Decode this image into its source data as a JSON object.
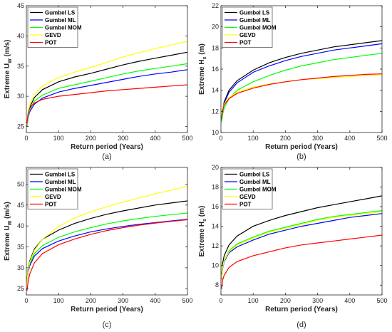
{
  "chart_data": [
    {
      "type": "line",
      "panel_label": "(a)",
      "xlabel": "Return period (Years)",
      "ylabel": "Extreme U",
      "ylabel_sub": "W",
      "ylabel_unit": " (m/s)",
      "xlim": [
        0,
        500
      ],
      "ylim": [
        24,
        45
      ],
      "xticks": [
        0,
        100,
        200,
        300,
        400,
        500
      ],
      "yticks": [
        25,
        30,
        35,
        40,
        45
      ],
      "grid": false,
      "legend_position": "top-left",
      "x": [
        2,
        5,
        10,
        25,
        50,
        100,
        150,
        200,
        250,
        300,
        350,
        400,
        450,
        500
      ],
      "series": [
        {
          "name": "Gumbel LS",
          "color": "#000000",
          "values": [
            25.2,
            26.8,
            28.1,
            29.8,
            31.1,
            32.4,
            33.2,
            33.8,
            34.5,
            35.2,
            35.8,
            36.3,
            36.8,
            37.3
          ]
        },
        {
          "name": "Gumbel ML",
          "color": "#0000ff",
          "values": [
            25.0,
            26.4,
            27.4,
            28.7,
            29.7,
            30.7,
            31.3,
            31.8,
            32.3,
            32.8,
            33.3,
            33.7,
            34.0,
            34.4
          ]
        },
        {
          "name": "Gumbel MOM",
          "color": "#00ff00",
          "values": [
            25.1,
            26.6,
            27.7,
            29.2,
            30.2,
            31.3,
            31.9,
            32.5,
            33.1,
            33.7,
            34.2,
            34.6,
            35.0,
            35.4
          ]
        },
        {
          "name": "GEVD",
          "color": "#ffff00",
          "values": [
            25.3,
            27.0,
            28.5,
            30.3,
            31.7,
            33.1,
            34.0,
            34.8,
            35.6,
            36.5,
            37.2,
            37.9,
            38.5,
            39.1
          ]
        },
        {
          "name": "POT",
          "color": "#ff0000",
          "values": [
            25.5,
            27.1,
            28.0,
            28.9,
            29.5,
            30.0,
            30.3,
            30.6,
            30.9,
            31.1,
            31.3,
            31.5,
            31.7,
            31.9
          ]
        }
      ]
    },
    {
      "type": "line",
      "panel_label": "(b)",
      "xlabel": "Return period (Years)",
      "ylabel": "Extreme H",
      "ylabel_sub": "s",
      "ylabel_unit": " (m)",
      "xlim": [
        0,
        500
      ],
      "ylim": [
        10,
        22
      ],
      "xticks": [
        0,
        100,
        200,
        300,
        400,
        500
      ],
      "yticks": [
        10,
        12,
        14,
        16,
        18,
        20,
        22
      ],
      "grid": false,
      "legend_position": "top-left",
      "x": [
        2,
        5,
        10,
        25,
        50,
        100,
        150,
        200,
        250,
        300,
        350,
        400,
        450,
        500
      ],
      "series": [
        {
          "name": "Gumbel LS",
          "color": "#000000",
          "values": [
            11.2,
            12.1,
            12.9,
            14.0,
            14.9,
            15.9,
            16.6,
            17.1,
            17.5,
            17.8,
            18.1,
            18.3,
            18.5,
            18.7
          ]
        },
        {
          "name": "Gumbel ML",
          "color": "#0000ff",
          "values": [
            11.2,
            12.0,
            12.8,
            13.8,
            14.7,
            15.7,
            16.3,
            16.8,
            17.2,
            17.5,
            17.8,
            18.0,
            18.2,
            18.4
          ]
        },
        {
          "name": "Gumbel MOM",
          "color": "#00ff00",
          "values": [
            11.0,
            11.7,
            12.3,
            13.2,
            14.0,
            14.8,
            15.4,
            15.9,
            16.3,
            16.6,
            16.9,
            17.1,
            17.3,
            17.5
          ]
        },
        {
          "name": "GEVD",
          "color": "#ffff00",
          "values": [
            11.4,
            12.2,
            12.7,
            13.3,
            13.8,
            14.3,
            14.6,
            14.8,
            15.0,
            15.1,
            15.2,
            15.3,
            15.4,
            15.45
          ]
        },
        {
          "name": "POT",
          "color": "#ff0000",
          "values": [
            11.4,
            12.1,
            12.6,
            13.2,
            13.7,
            14.2,
            14.55,
            14.8,
            15.0,
            15.15,
            15.3,
            15.4,
            15.5,
            15.55
          ]
        }
      ]
    },
    {
      "type": "line",
      "panel_label": "(c)",
      "xlabel": "Return period (Years)",
      "ylabel": "Extreme U",
      "ylabel_sub": "W",
      "ylabel_unit": " (m/s)",
      "xlim": [
        0,
        500
      ],
      "ylim": [
        23.5,
        54
      ],
      "xticks": [
        0,
        100,
        200,
        300,
        400,
        500
      ],
      "yticks": [
        25,
        30,
        35,
        40,
        45,
        50
      ],
      "grid": false,
      "legend_position": "top-left",
      "x": [
        2,
        5,
        10,
        25,
        50,
        100,
        150,
        200,
        250,
        300,
        350,
        400,
        450,
        500
      ],
      "series": [
        {
          "name": "Gumbel LS",
          "color": "#000000",
          "values": [
            27.0,
            29.5,
            31.5,
            34.5,
            36.8,
            39.0,
            40.6,
            41.8,
            42.8,
            43.6,
            44.3,
            45.0,
            45.5,
            46.0
          ]
        },
        {
          "name": "Gumbel ML",
          "color": "#0000ff",
          "values": [
            26.5,
            28.7,
            30.4,
            32.8,
            34.6,
            36.4,
            37.6,
            38.6,
            39.3,
            39.9,
            40.4,
            40.8,
            41.2,
            41.6
          ]
        },
        {
          "name": "Gumbel MOM",
          "color": "#00ff00",
          "values": [
            26.8,
            29.0,
            30.9,
            33.4,
            35.3,
            37.3,
            38.6,
            39.6,
            40.5,
            41.2,
            41.8,
            42.3,
            42.7,
            43.1
          ]
        },
        {
          "name": "GEVD",
          "color": "#ffff00",
          "values": [
            26.5,
            29.0,
            31.2,
            34.2,
            36.8,
            39.9,
            41.9,
            43.4,
            44.6,
            45.7,
            46.7,
            47.7,
            48.6,
            49.5
          ]
        },
        {
          "name": "POT",
          "color": "#ff0000",
          "values": [
            24.5,
            26.5,
            28.4,
            31.2,
            33.4,
            35.5,
            36.9,
            38.0,
            38.9,
            39.6,
            40.2,
            40.7,
            41.1,
            41.5
          ]
        }
      ]
    },
    {
      "type": "line",
      "panel_label": "(d)",
      "xlabel": "Return period (Years)",
      "ylabel": "Extreme H",
      "ylabel_sub": "s",
      "ylabel_unit": " (m)",
      "xlim": [
        0,
        500
      ],
      "ylim": [
        7,
        20
      ],
      "xticks": [
        0,
        100,
        200,
        300,
        400,
        500
      ],
      "yticks": [
        8,
        10,
        12,
        14,
        16,
        18,
        20
      ],
      "grid": false,
      "legend_position": "top-left",
      "x": [
        2,
        5,
        10,
        25,
        50,
        100,
        150,
        200,
        250,
        300,
        350,
        400,
        450,
        500
      ],
      "series": [
        {
          "name": "Gumbel LS",
          "color": "#000000",
          "values": [
            9.0,
            10.2,
            11.0,
            12.1,
            13.0,
            14.0,
            14.6,
            15.1,
            15.5,
            15.9,
            16.2,
            16.5,
            16.8,
            17.1
          ]
        },
        {
          "name": "Gumbel ML",
          "color": "#0000ff",
          "values": [
            8.6,
            9.7,
            10.4,
            11.3,
            11.9,
            12.6,
            13.2,
            13.6,
            14.0,
            14.3,
            14.6,
            14.9,
            15.1,
            15.3
          ]
        },
        {
          "name": "Gumbel MOM",
          "color": "#00ff00",
          "values": [
            8.7,
            9.8,
            10.5,
            11.5,
            12.2,
            12.9,
            13.5,
            13.9,
            14.3,
            14.7,
            15.0,
            15.2,
            15.4,
            15.6
          ]
        },
        {
          "name": "GEVD",
          "color": "#ffff00",
          "values": [
            8.7,
            9.8,
            10.5,
            11.4,
            12.1,
            12.8,
            13.4,
            13.8,
            14.2,
            14.6,
            14.9,
            15.1,
            15.3,
            15.5
          ]
        },
        {
          "name": "POT",
          "color": "#ff0000",
          "values": [
            7.6,
            8.5,
            9.0,
            9.8,
            10.4,
            11.0,
            11.4,
            11.8,
            12.1,
            12.3,
            12.5,
            12.7,
            12.9,
            13.1
          ]
        }
      ]
    }
  ]
}
